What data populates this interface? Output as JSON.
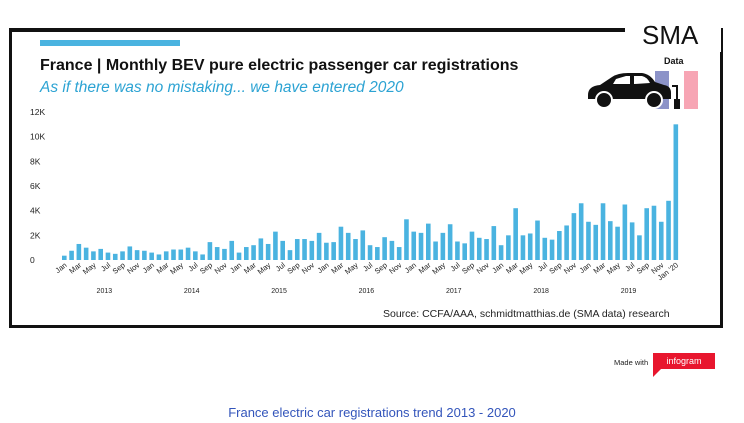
{
  "brand": "SMA",
  "data_tag": "Data",
  "title": "France | Monthly BEV pure electric passenger car registrations",
  "subtitle": "As if there was no mistaking... we have entered 2020",
  "source": "Source: CCFA/AAA, schmidtmatthias.de (SMA data) research",
  "made_with": "Made with",
  "infogram": "infogram",
  "caption": "France electric car registrations trend 2013 - 2020",
  "colors": {
    "bar": "#4ab3e0",
    "accent": "#4ab3e0",
    "subtitle": "#2ca3d3",
    "caption": "#3355bb",
    "badge": "#e8162e"
  },
  "chart_data": {
    "type": "bar",
    "start": "2013-01",
    "values": [
      350,
      750,
      1300,
      1000,
      700,
      900,
      600,
      500,
      700,
      1100,
      800,
      750,
      600,
      450,
      700,
      850,
      850,
      1000,
      700,
      450,
      1450,
      1050,
      900,
      1550,
      600,
      1050,
      1200,
      1750,
      1300,
      2300,
      1550,
      800,
      1700,
      1700,
      1550,
      2200,
      1400,
      1450,
      2700,
      2200,
      1700,
      2400,
      1200,
      1050,
      1850,
      1550,
      1050,
      3300,
      2300,
      2200,
      2950,
      1500,
      2200,
      2900,
      1500,
      1350,
      2300,
      1800,
      1700,
      2750,
      1200,
      2000,
      4200,
      2000,
      2150,
      3200,
      1800,
      1650,
      2350,
      2800,
      3800,
      4600,
      3100,
      2850,
      4600,
      3150,
      2700,
      4500,
      3050,
      2000,
      4200,
      4400,
      3100,
      4800,
      11000
    ],
    "xtick_labels": [
      "Jan",
      "Mar",
      "May",
      "Jul",
      "Sep",
      "Nov",
      "Jan",
      "Mar",
      "May",
      "Jul",
      "Sep",
      "Nov",
      "Jan",
      "Mar",
      "May",
      "Jul",
      "Sep",
      "Nov",
      "Jan",
      "Mar",
      "May",
      "Jul",
      "Sep",
      "Nov",
      "Jan",
      "Mar",
      "May",
      "Jul",
      "Sep",
      "Nov",
      "Jan",
      "Mar",
      "May",
      "Jul",
      "Sep",
      "Nov",
      "Jan",
      "Mar",
      "May",
      "Jul",
      "Sep",
      "Nov",
      "Jan '20"
    ],
    "years": [
      "2013",
      "2014",
      "2015",
      "2016",
      "2017",
      "2018",
      "2019"
    ],
    "yticks": [
      "0",
      "2K",
      "4K",
      "6K",
      "8K",
      "10K",
      "12K"
    ],
    "ylim": [
      0,
      12000
    ],
    "grid": false
  }
}
